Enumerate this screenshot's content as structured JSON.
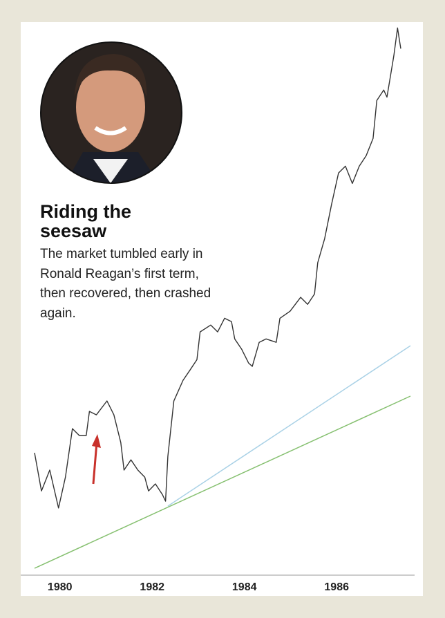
{
  "chart_data": {
    "type": "line",
    "title": "Riding the seesaw",
    "subtitle": "The market tumbled early in Ronald Reagan’s first term, then recovered, then crashed again.",
    "xlim": [
      1979.15,
      1987.69
    ],
    "xticks": [
      1980,
      1982,
      1984,
      1986
    ],
    "ylim": [
      474,
      2750
    ],
    "series": [
      {
        "color": "#333333",
        "x": [
          1979.45,
          1979.6,
          1979.78,
          1979.97,
          1980.12,
          1980.27,
          1980.42,
          1980.57,
          1980.64,
          1980.79,
          1981.02,
          1981.17,
          1981.32,
          1981.39,
          1981.54,
          1981.69,
          1981.84,
          1981.92,
          1982.07,
          1982.22,
          1982.29,
          1982.34,
          1982.47,
          1982.67,
          1982.82,
          1982.97,
          1983.04,
          1983.27,
          1983.42,
          1983.57,
          1983.72,
          1983.79,
          1983.94,
          1984.09,
          1984.17,
          1984.32,
          1984.47,
          1984.69,
          1984.77,
          1984.99,
          1985.22,
          1985.37,
          1985.52,
          1985.59,
          1985.74,
          1985.89,
          1986.04,
          1986.19,
          1986.34,
          1986.49,
          1986.64,
          1986.79,
          1986.87,
          1987.02,
          1987.09,
          1987.24,
          1987.32,
          1987.39
        ],
        "values": [
          977,
          820,
          906,
          750,
          877,
          1076,
          1048,
          1048,
          1147,
          1133,
          1190,
          1133,
          1019,
          906,
          948,
          906,
          877,
          820,
          849,
          806,
          778,
          962,
          1190,
          1275,
          1317,
          1360,
          1474,
          1502,
          1474,
          1530,
          1516,
          1445,
          1403,
          1346,
          1332,
          1431,
          1445,
          1431,
          1530,
          1559,
          1616,
          1587,
          1630,
          1758,
          1857,
          1999,
          2127,
          2155,
          2084,
          2155,
          2198,
          2269,
          2425,
          2468,
          2439,
          2610,
          2723,
          2638
        ]
      },
      {
        "color": "#a9d1e6",
        "x": [
          1982.34,
          1987.6
        ],
        "values": [
          758,
          1417
        ]
      },
      {
        "color": "#86c070",
        "x": [
          1979.45,
          1987.6
        ],
        "values": [
          502,
          1210
        ]
      }
    ]
  }
}
